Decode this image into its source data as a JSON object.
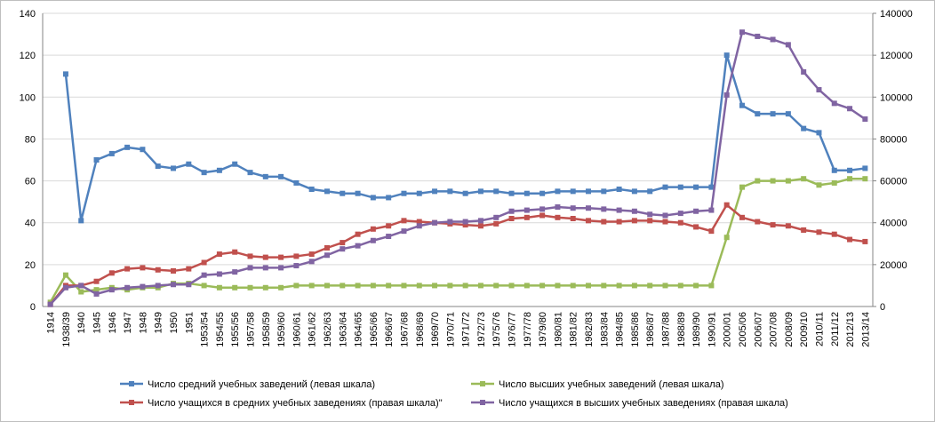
{
  "chart_data": {
    "type": "line",
    "categories": [
      "1914",
      "1938/39",
      "1940",
      "1945",
      "1946",
      "1947",
      "1948",
      "1949",
      "1950",
      "1951",
      "1953/54",
      "1954/55",
      "1955/56",
      "1957/58",
      "1958/59",
      "1959/60",
      "1960/61",
      "1961/62",
      "1962/63",
      "1963/64",
      "1964/65",
      "1965/66",
      "1966/67",
      "1967/68",
      "1968/69",
      "1969/70",
      "1970/71",
      "1971/72",
      "1972/73",
      "1975/76",
      "1976/77",
      "1977/78",
      "1979/80",
      "1980/81",
      "1981/82",
      "1982/83",
      "1983/84",
      "1984/85",
      "1985/86",
      "1986/87",
      "1987/88",
      "1988/89",
      "1989/90",
      "1990/91",
      "2000/01",
      "2005/06",
      "2006/07",
      "2007/08",
      "2008/09",
      "2009/10",
      "2010/11",
      "2011/12",
      "2012/13",
      "2013/14"
    ],
    "series": [
      {
        "name": "Число средний учебных заведений (левая шкала)",
        "color": "#4f81bd",
        "axis": "y",
        "values": [
          null,
          111,
          41,
          70,
          73,
          76,
          75,
          67,
          66,
          68,
          64,
          65,
          68,
          64,
          62,
          62,
          59,
          56,
          55,
          54,
          54,
          52,
          52,
          54,
          54,
          55,
          55,
          54,
          55,
          55,
          54,
          54,
          54,
          55,
          55,
          55,
          55,
          56,
          55,
          55,
          57,
          57,
          57,
          57,
          120,
          96,
          92,
          92,
          92,
          85,
          83,
          65,
          65,
          66
        ]
      },
      {
        "name": "Число высших учебных заведений (левая шкала)",
        "color": "#9bbb59",
        "axis": "y",
        "values": [
          2,
          15,
          7,
          8,
          9,
          8,
          9,
          9,
          11,
          11,
          10,
          9,
          9,
          9,
          9,
          9,
          10,
          10,
          10,
          10,
          10,
          10,
          10,
          10,
          10,
          10,
          10,
          10,
          10,
          10,
          10,
          10,
          10,
          10,
          10,
          10,
          10,
          10,
          10,
          10,
          10,
          10,
          10,
          10,
          33,
          57,
          60,
          60,
          60,
          61,
          58,
          59,
          61,
          61
        ]
      },
      {
        "name": "Число учащихся в средних учебных заведениях (правая  шкала)\"",
        "color": "#c0504d",
        "axis": "y2",
        "values": [
          1000,
          10000,
          10000,
          12000,
          16000,
          18000,
          18500,
          17500,
          17000,
          18000,
          21000,
          25000,
          26000,
          24000,
          23500,
          23500,
          24000,
          25000,
          28000,
          30500,
          34500,
          37000,
          38500,
          41000,
          40500,
          40000,
          39500,
          39000,
          38500,
          39500,
          42000,
          42500,
          43500,
          42500,
          42000,
          41000,
          40500,
          40500,
          41000,
          41000,
          40500,
          40000,
          38000,
          36000,
          48500,
          42500,
          40500,
          39000,
          38500,
          36500,
          35500,
          34500,
          32000,
          31000
        ]
      },
      {
        "name": "Число учащихся в высших учебных заведениях (правая  шкала)",
        "color": "#8064a2",
        "axis": "y2",
        "values": [
          1000,
          9000,
          10000,
          6000,
          8000,
          9000,
          9500,
          10000,
          10500,
          10500,
          15000,
          15500,
          16500,
          18500,
          18500,
          18500,
          19500,
          21500,
          24500,
          27500,
          29000,
          31500,
          33500,
          36000,
          38500,
          40000,
          40500,
          40500,
          41000,
          42500,
          45500,
          46000,
          46500,
          47500,
          47000,
          47000,
          46500,
          46000,
          45500,
          44000,
          43500,
          44500,
          45500,
          46000,
          101000,
          131000,
          129000,
          127500,
          125000,
          112000,
          103500,
          97000,
          94500,
          89500
        ]
      }
    ],
    "ylim": [
      0,
      140
    ],
    "yticks": [
      0,
      20,
      40,
      60,
      80,
      100,
      120,
      140
    ],
    "y2lim": [
      0,
      140000
    ],
    "y2ticks": [
      0,
      20000,
      40000,
      60000,
      80000,
      100000,
      120000,
      140000
    ],
    "grid": true
  }
}
